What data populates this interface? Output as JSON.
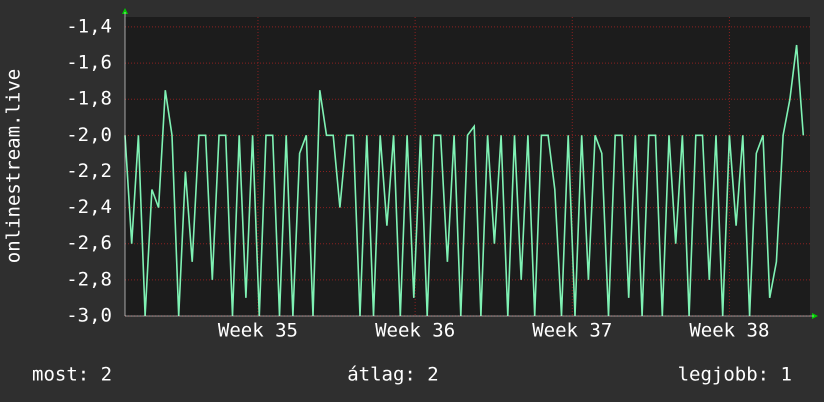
{
  "chart_data": {
    "type": "line",
    "ylabel": "onlinestream.live",
    "x": [
      0,
      1,
      2,
      3,
      4,
      5,
      6,
      7,
      8,
      9,
      10,
      11,
      12,
      13,
      14,
      15,
      16,
      17,
      18,
      19,
      20,
      21,
      22,
      23,
      24,
      25,
      26,
      27,
      28,
      29,
      30,
      31,
      32,
      33,
      34,
      35,
      36,
      37,
      38,
      39,
      40,
      41,
      42,
      43,
      44,
      45,
      46,
      47,
      48,
      49,
      50,
      51,
      52,
      53,
      54,
      55,
      56,
      57,
      58,
      59,
      60,
      61,
      62,
      63,
      64,
      65,
      66,
      67,
      68,
      69,
      70,
      71,
      72,
      73,
      74,
      75,
      76,
      77,
      78,
      79,
      80,
      81,
      82,
      83,
      84,
      85,
      86,
      87,
      88,
      89,
      90,
      91,
      92,
      93,
      94,
      95,
      96,
      97,
      98,
      99,
      100,
      101
    ],
    "series": [
      {
        "color": "#7ff2b4",
        "values": [
          -2.0,
          -2.6,
          -2.0,
          -3.0,
          -2.3,
          -2.4,
          -1.75,
          -2.0,
          -3.0,
          -2.2,
          -2.7,
          -2.0,
          -2.0,
          -2.8,
          -2.0,
          -2.0,
          -3.0,
          -2.0,
          -2.9,
          -2.0,
          -3.0,
          -2.0,
          -2.0,
          -3.0,
          -2.0,
          -3.0,
          -2.1,
          -2.0,
          -3.0,
          -1.75,
          -2.0,
          -2.0,
          -2.4,
          -2.0,
          -2.0,
          -3.0,
          -2.0,
          -3.0,
          -2.0,
          -2.5,
          -2.0,
          -3.0,
          -2.0,
          -2.9,
          -2.0,
          -3.0,
          -2.0,
          -2.0,
          -2.7,
          -2.0,
          -3.0,
          -2.0,
          -1.95,
          -3.0,
          -2.0,
          -2.6,
          -2.0,
          -3.0,
          -2.0,
          -2.8,
          -2.0,
          -3.0,
          -2.0,
          -2.0,
          -2.3,
          -3.0,
          -2.0,
          -3.0,
          -2.0,
          -2.8,
          -2.0,
          -2.1,
          -3.0,
          -2.0,
          -2.0,
          -2.9,
          -2.0,
          -3.0,
          -2.0,
          -2.0,
          -3.0,
          -2.0,
          -2.6,
          -2.0,
          -3.0,
          -2.0,
          -2.0,
          -2.8,
          -2.0,
          -3.0,
          -2.0,
          -2.5,
          -2.0,
          -3.0,
          -2.1,
          -2.0,
          -2.9,
          -2.7,
          -2.0,
          -1.8,
          -1.5,
          -2.0
        ]
      }
    ],
    "xlim": [
      0,
      102
    ],
    "xticks": [
      {
        "value": 19.8,
        "label": "Week 35"
      },
      {
        "value": 43.2,
        "label": "Week 36"
      },
      {
        "value": 66.6,
        "label": "Week 37"
      },
      {
        "value": 90.0,
        "label": "Week 38"
      }
    ],
    "ylim": [
      -3.0,
      -1.345
    ],
    "yticks": [
      {
        "value": -3.0,
        "label": "-3,0"
      },
      {
        "value": -2.8,
        "label": "-2,8"
      },
      {
        "value": -2.6,
        "label": "-2,6"
      },
      {
        "value": -2.4,
        "label": "-2,4"
      },
      {
        "value": -2.2,
        "label": "-2,2"
      },
      {
        "value": -2.0,
        "label": "-2,0"
      },
      {
        "value": -1.8,
        "label": "-1,8"
      },
      {
        "value": -1.6,
        "label": "-1,6"
      },
      {
        "value": -1.4,
        "label": "-1,4"
      }
    ],
    "grid": true,
    "stats": [
      "most: 2",
      "átlag: 2",
      "legjobb: 1"
    ]
  }
}
